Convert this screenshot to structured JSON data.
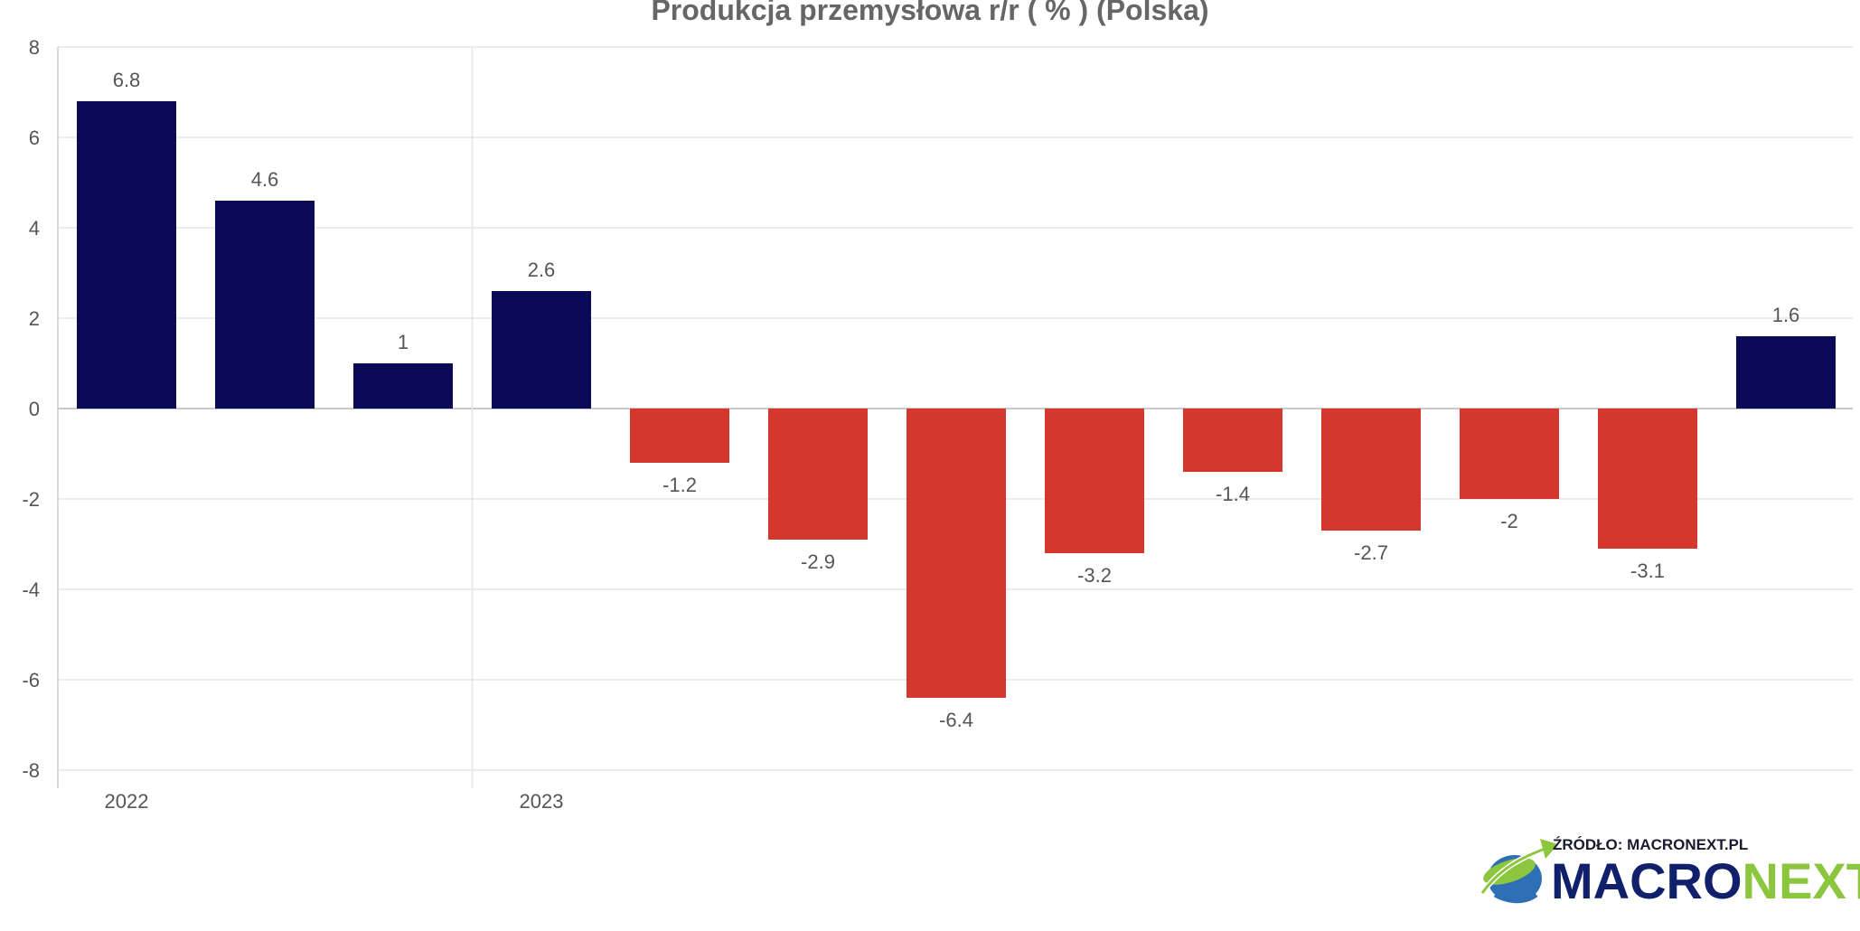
{
  "chart_data": {
    "type": "bar",
    "title": "Produkcja przemysłowa r/r ( % ) (Polska)",
    "xlabel": "",
    "ylabel": "",
    "ylim": [
      -8,
      8
    ],
    "yticks": [
      8,
      6,
      4,
      2,
      0,
      -2,
      -4,
      -6,
      -8
    ],
    "year_labels": [
      {
        "label": "2022",
        "index": 0
      },
      {
        "label": "2023",
        "index": 3
      }
    ],
    "year_divider_after_index": 2,
    "values": [
      6.8,
      4.6,
      1,
      2.6,
      -1.2,
      -2.9,
      -6.4,
      -3.2,
      -1.4,
      -2.7,
      -2,
      -3.1,
      1.6
    ],
    "value_labels": [
      "6.8",
      "4.6",
      "1",
      "2.6",
      "-1.2",
      "-2.9",
      "-6.4",
      "-3.2",
      "-1.4",
      "-2.7",
      "-2",
      "-3.1",
      "1.6"
    ],
    "colors": {
      "positive": "#0a0a56",
      "negative": "#d4382c",
      "grid": "#e6e6e6",
      "axis": "#cccccc",
      "zero_line": "#c8c8c8"
    },
    "grid": true,
    "legend": "none"
  },
  "logo": {
    "source_label": "ŹRÓDŁO: MACRONEXT.PL",
    "brand_part1": "MACRO",
    "brand_part2": "NEXT"
  }
}
